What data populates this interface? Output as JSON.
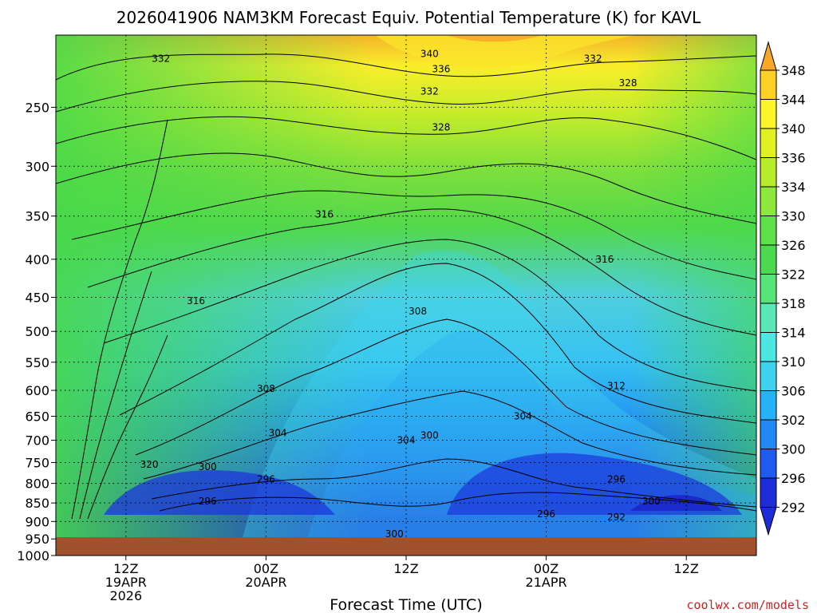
{
  "chart_data": {
    "type": "heatmap",
    "title": "2026041906 NAM3KM Forecast Equiv. Potential Temperature (K) for KAVL",
    "xlabel": "Forecast Time (UTC)",
    "ylabel": "",
    "y_scale": "log",
    "y_reversed": true,
    "ylim": [
      1000,
      200
    ],
    "y_ticks": [
      250,
      300,
      350,
      400,
      450,
      500,
      550,
      600,
      650,
      700,
      750,
      800,
      850,
      900,
      950,
      1000
    ],
    "x_ticks": [
      {
        "time": "2026-04-19T12Z",
        "lines": [
          "12Z",
          "19APR",
          "2026"
        ]
      },
      {
        "time": "2026-04-20T00Z",
        "lines": [
          "00Z",
          "20APR"
        ]
      },
      {
        "time": "2026-04-20T12Z",
        "lines": [
          "12Z"
        ]
      },
      {
        "time": "2026-04-21T00Z",
        "lines": [
          "00Z",
          "21APR"
        ]
      },
      {
        "time": "2026-04-21T12Z",
        "lines": [
          "12Z"
        ]
      }
    ],
    "xlim": [
      "2026-04-19T06Z",
      "2026-04-21T18Z"
    ],
    "grid": true,
    "surface_pressure_hPa": 945,
    "colorbar": {
      "units": "K",
      "labels": [
        292,
        296,
        300,
        302,
        306,
        310,
        314,
        318,
        322,
        326,
        330,
        334,
        336,
        340,
        344,
        348
      ],
      "colors": [
        "#1c2dd8",
        "#1f5bef",
        "#2289f4",
        "#27b1f6",
        "#3fd2ee",
        "#4ce7e2",
        "#59e9b8",
        "#56e478",
        "#4bd950",
        "#5ee048",
        "#8de83b",
        "#b8ec2a",
        "#e0f020",
        "#fbf52a",
        "#fcd025",
        "#f8a628"
      ]
    },
    "contour_labels": [
      {
        "time": "2026-04-19T15Z",
        "p": 215,
        "value": "332"
      },
      {
        "time": "2026-04-20T14Z",
        "p": 212,
        "value": "340"
      },
      {
        "time": "2026-04-20T15Z",
        "p": 222,
        "value": "336"
      },
      {
        "time": "2026-04-20T14Z",
        "p": 238,
        "value": "332"
      },
      {
        "time": "2026-04-20T15Z",
        "p": 266,
        "value": "328"
      },
      {
        "time": "2026-04-21T04Z",
        "p": 215,
        "value": "332"
      },
      {
        "time": "2026-04-21T07Z",
        "p": 232,
        "value": "328"
      },
      {
        "time": "2026-04-20T05Z",
        "p": 348,
        "value": "316"
      },
      {
        "time": "2026-04-21T05Z",
        "p": 400,
        "value": "316"
      },
      {
        "time": "2026-04-19T18Z",
        "p": 455,
        "value": "316"
      },
      {
        "time": "2026-04-20T13Z",
        "p": 470,
        "value": "308"
      },
      {
        "time": "2026-04-20T00Z",
        "p": 597,
        "value": "308"
      },
      {
        "time": "2026-04-21T06Z",
        "p": 592,
        "value": "312"
      },
      {
        "time": "2026-04-20T01Z",
        "p": 685,
        "value": "304"
      },
      {
        "time": "2026-04-20T12Z",
        "p": 700,
        "value": "304"
      },
      {
        "time": "2026-04-20T22Z",
        "p": 650,
        "value": "304"
      },
      {
        "time": "2026-04-20T14Z",
        "p": 690,
        "value": "300"
      },
      {
        "time": "2026-04-19T14Z",
        "p": 755,
        "value": "320"
      },
      {
        "time": "2026-04-19T19Z",
        "p": 760,
        "value": "300"
      },
      {
        "time": "2026-04-20T00Z",
        "p": 790,
        "value": "296"
      },
      {
        "time": "2026-04-19T19Z",
        "p": 845,
        "value": "296"
      },
      {
        "time": "2026-04-21T06Z",
        "p": 790,
        "value": "296"
      },
      {
        "time": "2026-04-21T09Z",
        "p": 845,
        "value": "300"
      },
      {
        "time": "2026-04-21T00Z",
        "p": 880,
        "value": "296"
      },
      {
        "time": "2026-04-21T06Z",
        "p": 888,
        "value": "292"
      },
      {
        "time": "2026-04-20T11Z",
        "p": 935,
        "value": "300"
      }
    ]
  },
  "credit": "coolwx.com/models"
}
